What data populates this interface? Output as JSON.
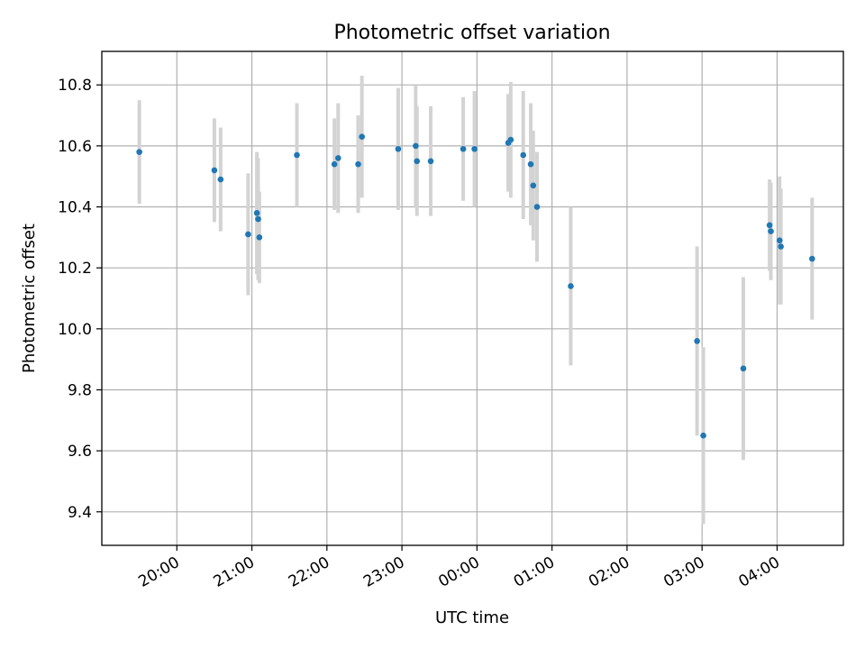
{
  "chart_data": {
    "type": "scatter",
    "title": "Photometric offset variation",
    "xlabel": "UTC time",
    "ylabel": "Photometric offset",
    "x_unit": "hours (UTC, clock time; 00:00 onward is the next day)",
    "xlim": [
      "19:00",
      "04:53"
    ],
    "ylim": [
      9.29,
      10.91
    ],
    "x_ticks": [
      "20:00",
      "21:00",
      "22:00",
      "23:00",
      "00:00",
      "01:00",
      "02:00",
      "03:00",
      "04:00"
    ],
    "y_ticks": [
      "9.4",
      "9.6",
      "9.8",
      "10.0",
      "10.2",
      "10.4",
      "10.6",
      "10.8"
    ],
    "grid": true,
    "colors": {
      "point": "#1f77b4",
      "errorbar": "#d3d3d3",
      "grid": "#b0b0b0"
    },
    "points": [
      {
        "t": "19:30",
        "y": 10.58,
        "err": 0.17
      },
      {
        "t": "20:30",
        "y": 10.52,
        "err": 0.17
      },
      {
        "t": "20:35",
        "y": 10.49,
        "err": 0.17
      },
      {
        "t": "20:57",
        "y": 10.31,
        "err": 0.2
      },
      {
        "t": "21:04",
        "y": 10.38,
        "err": 0.2
      },
      {
        "t": "21:05",
        "y": 10.36,
        "err": 0.2
      },
      {
        "t": "21:06",
        "y": 10.3,
        "err": 0.15
      },
      {
        "t": "21:36",
        "y": 10.57,
        "err": 0.17
      },
      {
        "t": "22:06",
        "y": 10.54,
        "err": 0.15
      },
      {
        "t": "22:09",
        "y": 10.56,
        "err": 0.18
      },
      {
        "t": "22:25",
        "y": 10.54,
        "err": 0.16
      },
      {
        "t": "22:28",
        "y": 10.63,
        "err": 0.2
      },
      {
        "t": "22:57",
        "y": 10.59,
        "err": 0.2
      },
      {
        "t": "23:11",
        "y": 10.6,
        "err": 0.2
      },
      {
        "t": "23:12",
        "y": 10.55,
        "err": 0.18
      },
      {
        "t": "23:23",
        "y": 10.55,
        "err": 0.18
      },
      {
        "t": "23:49",
        "y": 10.59,
        "err": 0.17
      },
      {
        "t": "23:58",
        "y": 10.59,
        "err": 0.19
      },
      {
        "t": "00:25",
        "y": 10.61,
        "err": 0.16
      },
      {
        "t": "00:27",
        "y": 10.62,
        "err": 0.19
      },
      {
        "t": "00:37",
        "y": 10.57,
        "err": 0.21
      },
      {
        "t": "00:43",
        "y": 10.54,
        "err": 0.2
      },
      {
        "t": "00:45",
        "y": 10.47,
        "err": 0.18
      },
      {
        "t": "00:48",
        "y": 10.4,
        "err": 0.18
      },
      {
        "t": "01:15",
        "y": 10.14,
        "err": 0.26
      },
      {
        "t": "02:56",
        "y": 9.96,
        "err": 0.31
      },
      {
        "t": "03:01",
        "y": 9.65,
        "err": 0.29
      },
      {
        "t": "03:33",
        "y": 9.87,
        "err": 0.3
      },
      {
        "t": "03:54",
        "y": 10.34,
        "err": 0.15
      },
      {
        "t": "03:55",
        "y": 10.32,
        "err": 0.16
      },
      {
        "t": "04:02",
        "y": 10.29,
        "err": 0.21
      },
      {
        "t": "04:03",
        "y": 10.27,
        "err": 0.19
      },
      {
        "t": "04:28",
        "y": 10.23,
        "err": 0.2
      }
    ]
  }
}
